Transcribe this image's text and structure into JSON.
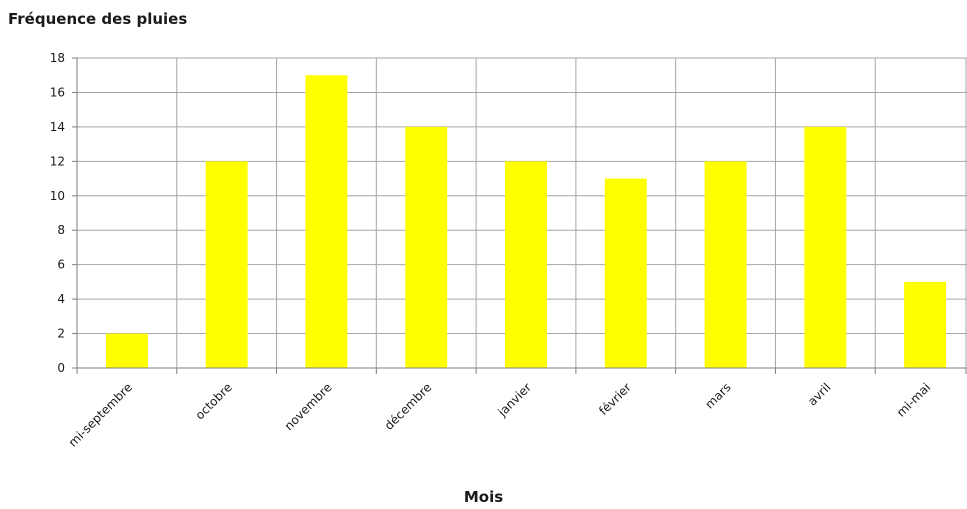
{
  "chart_data": {
    "type": "bar",
    "title": "Fréquence des pluies",
    "xlabel": "Mois",
    "ylabel": "",
    "categories": [
      "mi-septembre",
      "octobre",
      "novembre",
      "décembre",
      "janvier",
      "février",
      "mars",
      "avril",
      "mi-mai"
    ],
    "values": [
      2,
      12,
      17,
      14,
      12,
      11,
      12,
      14,
      5
    ],
    "ylim": [
      0,
      18
    ],
    "yticks": [
      "0",
      "2",
      "4",
      "6",
      "8",
      "10",
      "12",
      "14",
      "16",
      "18"
    ],
    "grid": true,
    "legend": "none",
    "bar_color": "#ffff00",
    "grid_color": "#a6a6a6"
  }
}
